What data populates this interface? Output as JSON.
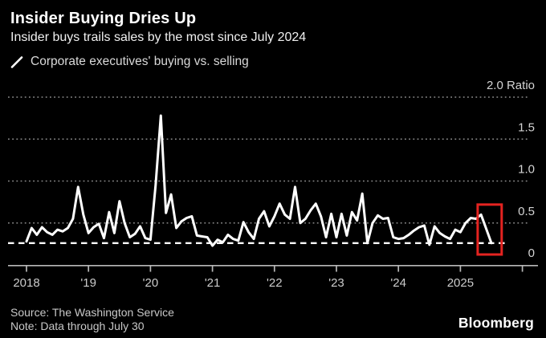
{
  "header": {
    "title": "Insider Buying Dries Up",
    "subtitle": "Insider buys trails sales by the most since July 2024",
    "legend_label": "Corporate executives' buying vs. selling"
  },
  "footer": {
    "source": "Source: The Washington Service",
    "note": "Note: Data through July 30",
    "logo": "Bloomberg"
  },
  "colors": {
    "background": "#000000",
    "series_line": "#ffffff",
    "grid": "#8c8c8c",
    "axis": "#b8b8b8",
    "axis_label": "#cccccc",
    "reference_line": "#ffffff",
    "highlight": "#e42320"
  },
  "chart_data": {
    "type": "line",
    "title": "Insider Buying Dries Up",
    "subtitle": "Insider buys trails sales by the most since July 2024",
    "series_name": "Corporate executives' buying vs. selling",
    "unit": "Ratio",
    "frequency": "monthly",
    "x_start": "2018-01",
    "x_end": "2025-07",
    "ylim": [
      0,
      2.0
    ],
    "grid": "dotted-horizontal",
    "y_ticks": [
      0,
      0.5,
      1.0,
      1.5,
      2.0
    ],
    "y_tick_labels": [
      "0",
      "0.5",
      "1.0",
      "1.5",
      "2.0 Ratio"
    ],
    "x_tick_month_indices": [
      0,
      12,
      24,
      36,
      48,
      60,
      72,
      84
    ],
    "x_tick_labels": [
      "2018",
      "'19",
      "'20",
      "'21",
      "'22",
      "'23",
      "'24",
      "2025"
    ],
    "reference_line": {
      "style": "dashed",
      "value": 0.26,
      "meaning": "latest reading"
    },
    "highlight_box": {
      "month_range": [
        87.35,
        92.0
      ],
      "value_range": [
        0.125,
        0.72
      ]
    },
    "values": [
      0.28,
      0.44,
      0.36,
      0.45,
      0.39,
      0.36,
      0.42,
      0.4,
      0.44,
      0.55,
      0.93,
      0.6,
      0.38,
      0.45,
      0.49,
      0.32,
      0.63,
      0.38,
      0.76,
      0.5,
      0.33,
      0.37,
      0.46,
      0.32,
      0.3,
      0.95,
      1.78,
      0.62,
      0.84,
      0.44,
      0.52,
      0.56,
      0.58,
      0.35,
      0.34,
      0.33,
      0.23,
      0.3,
      0.27,
      0.36,
      0.31,
      0.29,
      0.51,
      0.39,
      0.31,
      0.55,
      0.64,
      0.46,
      0.58,
      0.73,
      0.6,
      0.55,
      0.93,
      0.5,
      0.55,
      0.65,
      0.73,
      0.58,
      0.33,
      0.61,
      0.33,
      0.61,
      0.35,
      0.63,
      0.53,
      0.85,
      0.26,
      0.5,
      0.59,
      0.55,
      0.56,
      0.33,
      0.31,
      0.32,
      0.36,
      0.41,
      0.45,
      0.47,
      0.24,
      0.46,
      0.38,
      0.34,
      0.31,
      0.42,
      0.39,
      0.5,
      0.56,
      0.55,
      0.6,
      0.43,
      0.26
    ]
  }
}
